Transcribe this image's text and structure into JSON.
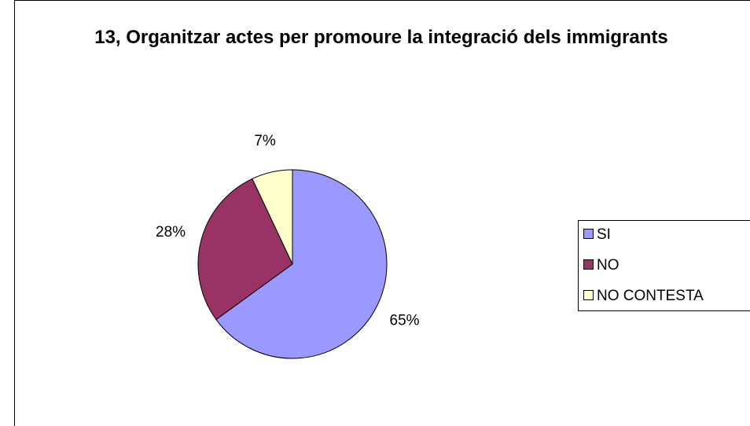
{
  "chart_data": {
    "type": "pie",
    "title": "13, Organitzar actes per promoure la integració dels immigrants",
    "categories": [
      "SI",
      "NO",
      "NO CONTESTA"
    ],
    "values": [
      65,
      28,
      7
    ],
    "value_labels": [
      "65%",
      "28%",
      "7%"
    ],
    "colors": [
      "#9999ff",
      "#993366",
      "#ffffcc"
    ],
    "legend": "right"
  }
}
